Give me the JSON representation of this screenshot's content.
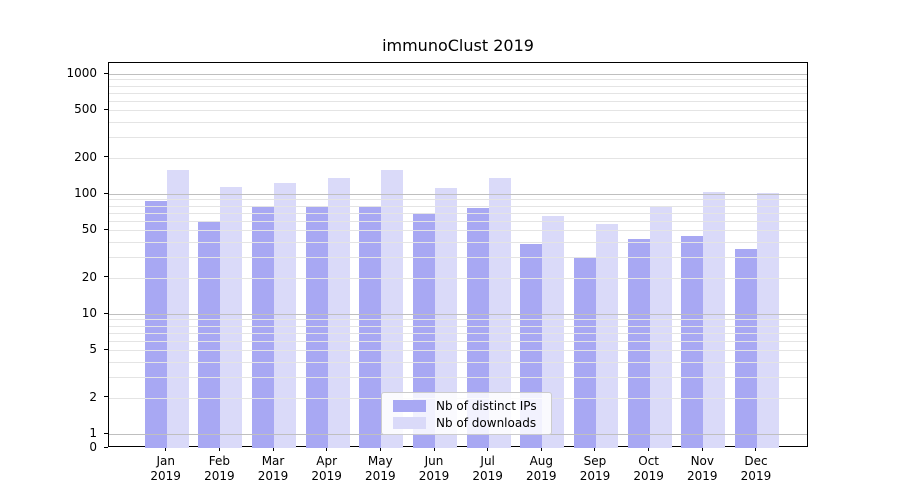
{
  "title": "immunoClust 2019",
  "colors": {
    "bar_distinct_ips": "#a8a8f3",
    "bar_downloads": "#dadaf9",
    "grid_major": "#bfbfbf",
    "grid_minor": "#e4e4e4",
    "spine": "#000000",
    "legend_border": "#cccccc",
    "background": "#ffffff"
  },
  "legend": {
    "items": [
      {
        "label": "Nb of distinct IPs"
      },
      {
        "label": "Nb of downloads"
      }
    ]
  },
  "chart_data": {
    "type": "bar",
    "title": "immunoClust 2019",
    "categories": [
      "Jan 2019",
      "Feb 2019",
      "Mar 2019",
      "Apr 2019",
      "May 2019",
      "Jun 2019",
      "Jul 2019",
      "Aug 2019",
      "Sep 2019",
      "Oct 2019",
      "Nov 2019",
      "Dec 2019"
    ],
    "series": [
      {
        "name": "Nb of distinct IPs",
        "key": "distinct-ips",
        "color": "#a8a8f3",
        "values": [
          88,
          60,
          79,
          78,
          80,
          70,
          76,
          38,
          30,
          42,
          45,
          35
        ]
      },
      {
        "name": "Nb of downloads",
        "key": "downloads",
        "color": "#dadaf9",
        "values": [
          158,
          115,
          124,
          135,
          160,
          113,
          136,
          65,
          56,
          80,
          103,
          101
        ]
      }
    ],
    "yscale": "log with zero baseline",
    "yticks": [
      0,
      1,
      2,
      5,
      10,
      20,
      50,
      100,
      200,
      500,
      1000
    ],
    "ylim": [
      0,
      1000
    ],
    "grid": "horizontal major and minor log gridlines drawn over bars",
    "legend_position": "inside bottom center"
  }
}
